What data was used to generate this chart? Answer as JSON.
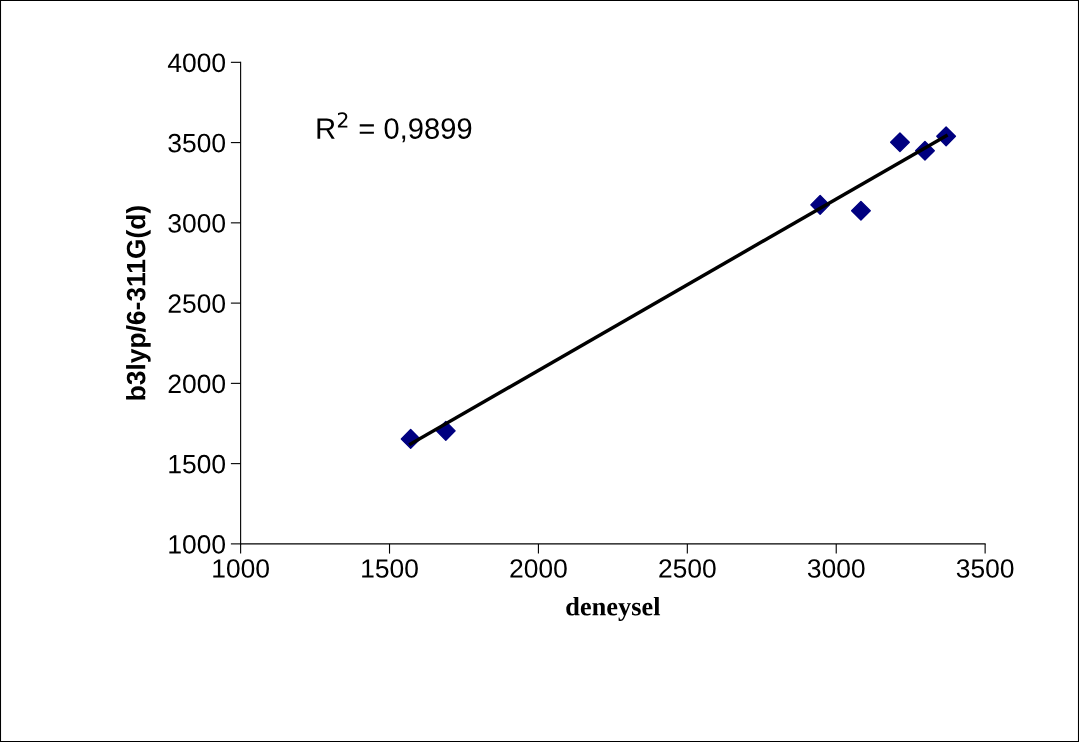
{
  "chart_data": {
    "type": "scatter",
    "xlabel": "deneysel",
    "ylabel": "b3lyp/6-311G(d)",
    "annotations": [
      "R$^{2}$ = 0,9899"
    ],
    "series": [
      {
        "color": "#000080",
        "marker": "diamond",
        "x": [
          1571,
          1689,
          2946,
          3083,
          3214,
          3298,
          3369
        ],
        "values": [
          1654,
          1704,
          3112,
          3075,
          3502,
          3449,
          3539
        ]
      },
      {
        "type": "line",
        "color": "#000000",
        "marker": "none",
        "x": [
          1571,
          3369
        ],
        "values": [
          1623,
          3542
        ]
      }
    ],
    "xlim": [
      1000,
      3500
    ],
    "xticks": [
      1000,
      1500,
      2000,
      2500,
      3000,
      3500
    ],
    "ylim": [
      1000,
      4000
    ],
    "yticks": [
      1000,
      1500,
      2000,
      2500,
      3000,
      3500,
      4000
    ],
    "grid": false,
    "legend": false
  }
}
